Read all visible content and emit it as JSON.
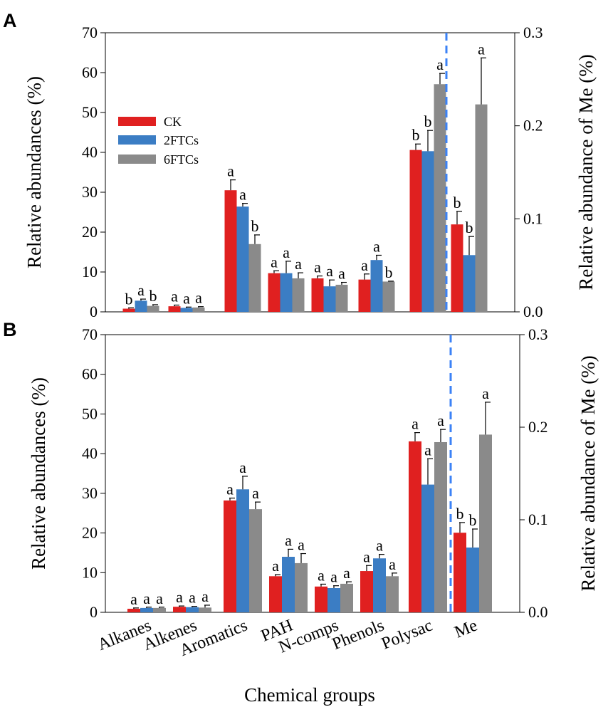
{
  "colors": {
    "CK": "#e02020",
    "2FTCs": "#3b7dc4",
    "6FTCs": "#8a8a8a",
    "divider": "#3b82f6"
  },
  "x_axis_title": "Chemical groups",
  "chart_data": [
    {
      "type": "bar",
      "panel": "A",
      "categories": [
        "Alkanes",
        "Alkenes",
        "Aromatics",
        "PAH",
        "N-comps",
        "Phenols",
        "Polysac",
        "Me"
      ],
      "legend": [
        "CK",
        "2FTCs",
        "6FTCs"
      ],
      "legend_position": "upper-left",
      "ylabel": "Relative abundances (%)",
      "ylim": [
        0,
        70
      ],
      "yticks": [
        "0",
        "10",
        "20",
        "30",
        "40",
        "50",
        "60",
        "70"
      ],
      "y2label": "Relative abundance of Me (%)",
      "y2lim": [
        0,
        0.3
      ],
      "y2ticks": [
        "0.0",
        "0.1",
        "0.2",
        "0.3"
      ],
      "series": [
        {
          "name": "CK",
          "values": [
            0.8,
            1.4,
            30.5,
            9.7,
            8.4,
            8.1,
            40.6,
            0.094
          ],
          "errors": [
            0.2,
            0.3,
            2.6,
            0.6,
            0.6,
            1.4,
            1.5,
            0.014
          ],
          "letters": [
            "b",
            "a",
            "a",
            "a",
            "a",
            "a",
            "b",
            "b"
          ]
        },
        {
          "name": "2FTCs",
          "values": [
            2.8,
            1.0,
            26.4,
            9.7,
            6.4,
            13.0,
            40.3,
            0.061
          ],
          "errors": [
            0.4,
            0.2,
            0.8,
            3.0,
            1.6,
            1.2,
            5.2,
            0.02
          ],
          "letters": [
            "a",
            "a",
            "a",
            "a",
            "a",
            "a",
            "b",
            "b"
          ]
        },
        {
          "name": "6FTCs",
          "values": [
            1.5,
            1.1,
            17.0,
            8.4,
            6.8,
            7.6,
            57.1,
            0.223
          ],
          "errors": [
            0.3,
            0.2,
            2.3,
            1.4,
            0.6,
            0.1,
            2.7,
            0.05
          ],
          "letters": [
            "b",
            "a",
            "b",
            "a",
            "a",
            "b",
            "a",
            "a"
          ]
        }
      ],
      "secondary_axis_categories": [
        "Me"
      ]
    },
    {
      "type": "bar",
      "panel": "B",
      "categories": [
        "Alkanes",
        "Alkenes",
        "Aromatics",
        "PAH",
        "N-comps",
        "Phenols",
        "Polysac",
        "Me"
      ],
      "legend": [
        "CK",
        "2FTCs",
        "6FTCs"
      ],
      "ylabel": "Relative abundances (%)",
      "ylim": [
        0,
        70
      ],
      "yticks": [
        "0",
        "10",
        "20",
        "30",
        "40",
        "50",
        "60",
        "70"
      ],
      "y2label": "Relative abundance of Me (%)",
      "y2lim": [
        0,
        0.3
      ],
      "y2ticks": [
        "0.0",
        "0.1",
        "0.2",
        "0.3"
      ],
      "series": [
        {
          "name": "CK",
          "values": [
            0.9,
            1.4,
            28.2,
            9.1,
            6.5,
            10.4,
            43.1,
            0.086
          ],
          "errors": [
            0.2,
            0.2,
            0.6,
            0.4,
            0.6,
            1.4,
            2.2,
            0.011
          ],
          "letters": [
            "a",
            "a",
            "a",
            "a",
            "a",
            "a",
            "a",
            "b"
          ]
        },
        {
          "name": "2FTCs",
          "values": [
            1.1,
            1.3,
            31.0,
            14.0,
            6.1,
            13.6,
            32.2,
            0.07
          ],
          "errors": [
            0.2,
            0.2,
            3.3,
            1.9,
            0.6,
            1.0,
            6.5,
            0.02
          ],
          "letters": [
            "a",
            "a",
            "a",
            "a",
            "a",
            "a",
            "a",
            "b"
          ]
        },
        {
          "name": "6FTCs",
          "values": [
            1.1,
            1.2,
            26.0,
            12.4,
            7.2,
            9.1,
            42.9,
            0.192
          ],
          "errors": [
            0.2,
            0.6,
            1.8,
            2.4,
            0.5,
            0.8,
            3.2,
            0.035
          ],
          "letters": [
            "a",
            "a",
            "a",
            "a",
            "a",
            "a",
            "a",
            "a"
          ]
        }
      ],
      "secondary_axis_categories": [
        "Me"
      ]
    }
  ]
}
